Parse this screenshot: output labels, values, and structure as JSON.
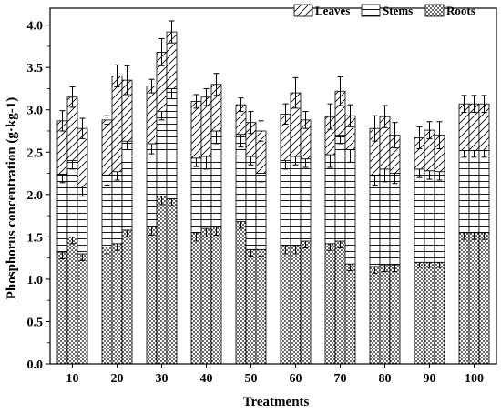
{
  "chart_data": {
    "type": "bar",
    "stacked": true,
    "xlabel": "Treatments",
    "ylabel": "Phosphorus concentration (g·kg-1)",
    "ylim": [
      0,
      4.2
    ],
    "yticks": [
      "0.0",
      "0.5",
      "1.0",
      "1.5",
      "2.0",
      "2.5",
      "3.0",
      "3.5",
      "4.0"
    ],
    "categories": [
      "10",
      "20",
      "30",
      "40",
      "50",
      "60",
      "70",
      "80",
      "90",
      "100"
    ],
    "bars_per_category": 3,
    "legend_position": "top-right",
    "series": [
      {
        "name": "Roots",
        "pattern": "dots",
        "values": [
          [
            1.32,
            1.5,
            1.3
          ],
          [
            1.38,
            1.42,
            1.58
          ],
          [
            1.62,
            1.98,
            1.95
          ],
          [
            1.55,
            1.6,
            1.62
          ],
          [
            1.68,
            1.35,
            1.35
          ],
          [
            1.4,
            1.4,
            1.45
          ],
          [
            1.42,
            1.45,
            1.18
          ],
          [
            1.15,
            1.17,
            1.17
          ],
          [
            1.2,
            1.2,
            1.2
          ],
          [
            1.55,
            1.55,
            1.55
          ]
        ],
        "errors": [
          [
            0.08,
            0.08,
            0.08
          ],
          [
            0.08,
            0.08,
            0.08
          ],
          [
            0.1,
            0.1,
            0.08
          ],
          [
            0.1,
            0.1,
            0.1
          ],
          [
            0.08,
            0.08,
            0.08
          ],
          [
            0.1,
            0.1,
            0.08
          ],
          [
            0.08,
            0.08,
            0.08
          ],
          [
            0.08,
            0.08,
            0.08
          ],
          [
            0.06,
            0.06,
            0.06
          ],
          [
            0.08,
            0.08,
            0.08
          ]
        ]
      },
      {
        "name": "Stems",
        "pattern": "horizontal-lines",
        "values": [
          [
            0.92,
            0.9,
            0.78
          ],
          [
            0.85,
            0.85,
            1.05
          ],
          [
            0.98,
            1.0,
            1.3
          ],
          [
            0.88,
            0.85,
            1.13
          ],
          [
            1.03,
            1.1,
            0.9
          ],
          [
            1.0,
            1.05,
            0.97
          ],
          [
            1.05,
            1.25,
            1.35
          ],
          [
            1.08,
            1.13,
            1.08
          ],
          [
            1.1,
            1.08,
            1.07
          ],
          [
            0.97,
            0.97,
            0.97
          ]
        ],
        "errors": [
          [
            0.1,
            0.1,
            0.1
          ],
          [
            0.12,
            0.1,
            0.1
          ],
          [
            0.12,
            0.1,
            0.12
          ],
          [
            0.1,
            0.15,
            0.15
          ],
          [
            0.15,
            0.1,
            0.1
          ],
          [
            0.1,
            0.1,
            0.1
          ],
          [
            0.15,
            0.1,
            0.15
          ],
          [
            0.12,
            0.15,
            0.12
          ],
          [
            0.1,
            0.1,
            0.1
          ],
          [
            0.08,
            0.08,
            0.08
          ]
        ]
      },
      {
        "name": "Leaves",
        "pattern": "diagonal-hatch",
        "values": [
          [
            0.63,
            0.75,
            0.7
          ],
          [
            0.65,
            1.13,
            0.72
          ],
          [
            0.68,
            0.7,
            0.67
          ],
          [
            0.67,
            0.7,
            0.55
          ],
          [
            0.35,
            0.4,
            0.5
          ],
          [
            0.55,
            0.75,
            0.46
          ],
          [
            0.45,
            0.52,
            0.4
          ],
          [
            0.55,
            0.62,
            0.45
          ],
          [
            0.37,
            0.48,
            0.43
          ],
          [
            0.55,
            0.55,
            0.55
          ]
        ],
        "errors": [
          [
            0.12,
            0.12,
            0.12
          ],
          [
            0.05,
            0.13,
            0.17
          ],
          [
            0.08,
            0.16,
            0.13
          ],
          [
            0.08,
            0.1,
            0.13
          ],
          [
            0.08,
            0.13,
            0.12
          ],
          [
            0.12,
            0.18,
            0.1
          ],
          [
            0.15,
            0.17,
            0.13
          ],
          [
            0.15,
            0.13,
            0.15
          ],
          [
            0.13,
            0.1,
            0.16
          ],
          [
            0.1,
            0.1,
            0.1
          ]
        ]
      }
    ]
  }
}
